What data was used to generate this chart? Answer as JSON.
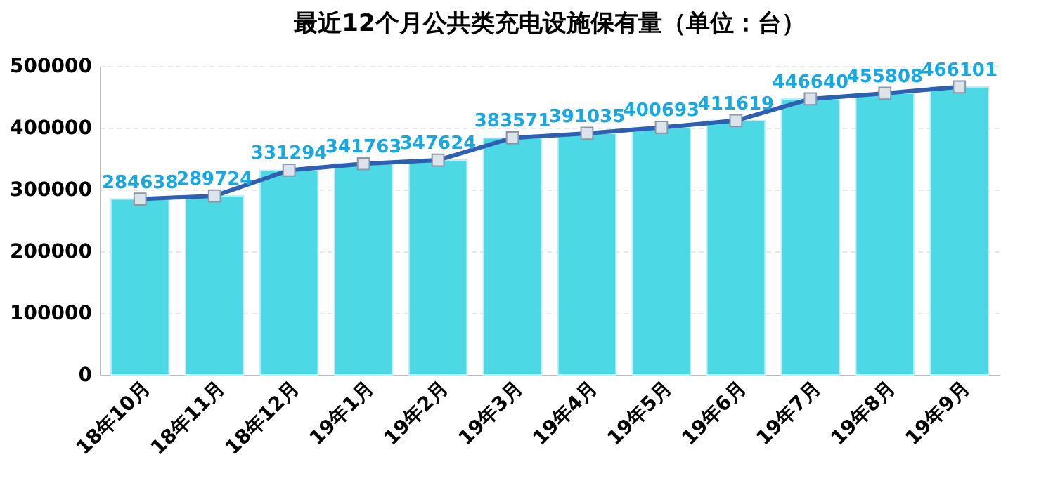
{
  "chart_data": {
    "type": "bar",
    "title": "最近12个月公共类充电设施保有量（单位：台）",
    "categories": [
      "18年10月",
      "18年11月",
      "18年12月",
      "19年1月",
      "19年2月",
      "19年3月",
      "19年4月",
      "19年5月",
      "19年6月",
      "19年7月",
      "19年8月",
      "19年9月"
    ],
    "series": [
      {
        "color": "#4dd8e6",
        "values": [
          284638,
          289724,
          331294,
          341763,
          347624,
          383571,
          391035,
          400693,
          411619,
          446640,
          455808,
          466101
        ]
      },
      {
        "type": "line",
        "color": "#2f5fb0",
        "marker": "square",
        "values": [
          284638,
          289724,
          331294,
          341763,
          347624,
          383571,
          391035,
          400693,
          411619,
          446640,
          455808,
          466101
        ],
        "value_labels": [
          "284638",
          "289724",
          "331294",
          "341763",
          "347624",
          "383571",
          "391035",
          "400693",
          "411619",
          "446640",
          "455808",
          "466101"
        ]
      }
    ],
    "ylim": [
      0,
      500000
    ],
    "yticks": [
      0,
      100000,
      200000,
      300000,
      400000,
      500000
    ],
    "grid": "y"
  }
}
